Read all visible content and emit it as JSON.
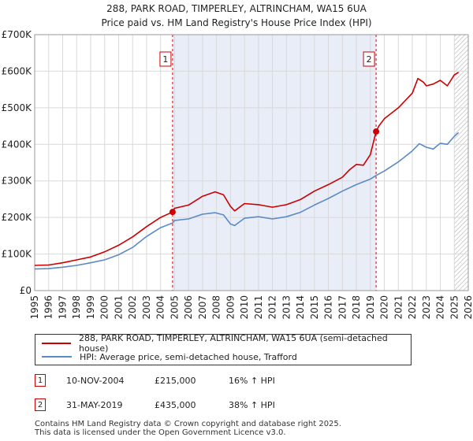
{
  "chart_data": {
    "type": "line",
    "title": "288, PARK ROAD, TIMPERLEY, ALTRINCHAM, WA15 6UA",
    "subtitle": "Price paid vs. HM Land Registry's House Price Index (HPI)",
    "xlim": [
      1995,
      2026
    ],
    "ylim": [
      0,
      700000
    ],
    "x_ticks": [
      1995,
      1996,
      1997,
      1998,
      1999,
      2000,
      2001,
      2002,
      2003,
      2004,
      2005,
      2006,
      2007,
      2008,
      2009,
      2010,
      2011,
      2012,
      2013,
      2014,
      2015,
      2016,
      2017,
      2018,
      2019,
      2020,
      2021,
      2022,
      2023,
      2024,
      2025,
      2026
    ],
    "y_ticks": [
      {
        "value": 0,
        "label": "£0"
      },
      {
        "value": 100000,
        "label": "£100K"
      },
      {
        "value": 200000,
        "label": "£200K"
      },
      {
        "value": 300000,
        "label": "£300K"
      },
      {
        "value": 400000,
        "label": "£400K"
      },
      {
        "value": 500000,
        "label": "£500K"
      },
      {
        "value": 600000,
        "label": "£600K"
      },
      {
        "value": 700000,
        "label": "£700K"
      }
    ],
    "shaded_range": [
      2004.86,
      2019.41
    ],
    "forecast_start": 2025.0,
    "series": [
      {
        "name": "288, PARK ROAD, TIMPERLEY, ALTRINCHAM, WA15 6UA (semi-detached house)",
        "color": "#cc0000",
        "x": [
          1995,
          1996,
          1997,
          1998,
          1999,
          2000,
          2001,
          2002,
          2003,
          2004,
          2004.86,
          2005,
          2006,
          2007,
          2007.9,
          2008.5,
          2009,
          2009.3,
          2010,
          2011,
          2012,
          2013,
          2014,
          2015,
          2016,
          2017,
          2017.5,
          2018,
          2018.5,
          2019,
          2019.41,
          2019.6,
          2020,
          2021,
          2022,
          2022.4,
          2022.8,
          2023,
          2023.5,
          2024,
          2024.5,
          2025,
          2025.3
        ],
        "y": [
          69000,
          70000,
          76000,
          84000,
          92000,
          106000,
          124000,
          147000,
          175000,
          200000,
          215000,
          225000,
          234000,
          258000,
          270000,
          262000,
          230000,
          218000,
          238000,
          235000,
          228000,
          235000,
          249000,
          272000,
          290000,
          310000,
          330000,
          345000,
          343000,
          372000,
          435000,
          450000,
          470000,
          500000,
          540000,
          580000,
          570000,
          560000,
          565000,
          575000,
          560000,
          590000,
          597000
        ]
      },
      {
        "name": "HPI: Average price, semi-detached house, Trafford",
        "color": "#5b8ac6",
        "x": [
          1995,
          1996,
          1997,
          1998,
          1999,
          2000,
          2001,
          2002,
          2003,
          2004,
          2004.86,
          2005,
          2006,
          2007,
          2007.9,
          2008.5,
          2009,
          2009.3,
          2010,
          2011,
          2012,
          2013,
          2014,
          2015,
          2016,
          2017,
          2018,
          2019,
          2019.41,
          2020,
          2021,
          2022,
          2022.5,
          2023,
          2023.5,
          2024,
          2024.5,
          2025,
          2025.3
        ],
        "y": [
          59000,
          60000,
          64000,
          69000,
          76000,
          84000,
          98000,
          118000,
          148000,
          172000,
          185000,
          192000,
          196000,
          209000,
          213000,
          207000,
          182000,
          178000,
          198000,
          202000,
          196000,
          202000,
          214000,
          234000,
          252000,
          272000,
          290000,
          305000,
          315000,
          327000,
          352000,
          382000,
          402000,
          392000,
          387000,
          403000,
          400000,
          422000,
          432000
        ]
      }
    ],
    "markers": [
      {
        "label": "1",
        "x": 2004.86,
        "y": 215000
      },
      {
        "label": "2",
        "x": 2019.41,
        "y": 435000
      }
    ],
    "legend_position": "below"
  },
  "transactions": [
    {
      "num": "1",
      "date": "10-NOV-2004",
      "price": "£215,000",
      "hpi": "16% ↑ HPI"
    },
    {
      "num": "2",
      "date": "31-MAY-2019",
      "price": "£435,000",
      "hpi": "38% ↑ HPI"
    }
  ],
  "footer": {
    "line1": "Contains HM Land Registry data © Crown copyright and database right 2025.",
    "line2": "This data is licensed under the Open Government Licence v3.0."
  },
  "colors": {
    "property": "#cc0000",
    "hpi": "#5b8ac6",
    "shade": "#e8edf8",
    "grid": "#d9d9d9",
    "marker_border": "#cc0000"
  }
}
